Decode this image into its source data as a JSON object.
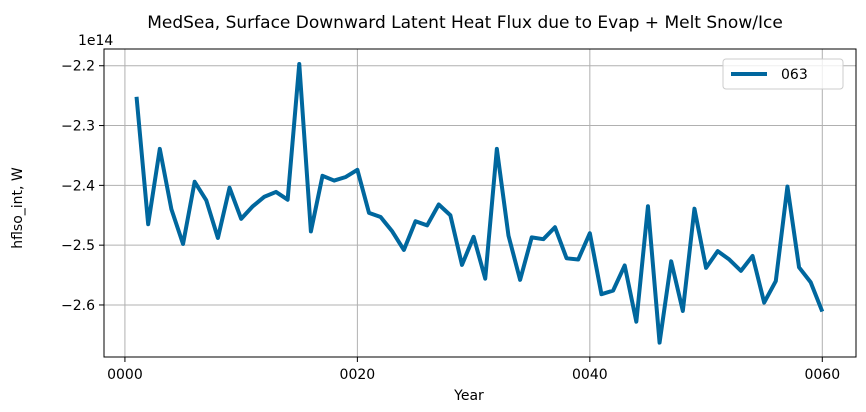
{
  "chart_data": {
    "type": "line",
    "title": "MedSea, Surface Downward Latent Heat Flux due to Evap + Melt Snow/Ice",
    "xlabel": "Year",
    "ylabel": "hflso_int, W",
    "y_offset_label": "1e14",
    "xlim": [
      -1.8,
      62.9
    ],
    "ylim": [
      -2.687,
      -2.172
    ],
    "grid": true,
    "legend_position": "top-right",
    "x_ticks": [
      {
        "value": 0,
        "label": "0000"
      },
      {
        "value": 20,
        "label": "0020"
      },
      {
        "value": 40,
        "label": "0040"
      },
      {
        "value": 60,
        "label": "0060"
      }
    ],
    "y_ticks": [
      {
        "value": -2.2,
        "label": "−2.2"
      },
      {
        "value": -2.3,
        "label": "−2.3"
      },
      {
        "value": -2.4,
        "label": "−2.4"
      },
      {
        "value": -2.5,
        "label": "−2.5"
      },
      {
        "value": -2.6,
        "label": "−2.6"
      }
    ],
    "series": [
      {
        "name": "063",
        "color": "#00679e",
        "x": [
          1,
          2,
          3,
          4,
          5,
          6,
          7,
          8,
          9,
          10,
          11,
          12,
          13,
          14,
          15,
          16,
          17,
          18,
          19,
          20,
          21,
          22,
          23,
          24,
          25,
          26,
          27,
          28,
          29,
          30,
          31,
          32,
          33,
          34,
          35,
          36,
          37,
          38,
          39,
          40,
          41,
          42,
          43,
          44,
          45,
          46,
          47,
          48,
          49,
          50,
          51,
          52,
          53,
          54,
          55,
          56,
          57,
          58,
          59,
          60
        ],
        "y": [
          -2.252,
          -2.465,
          -2.339,
          -2.44,
          -2.498,
          -2.394,
          -2.425,
          -2.488,
          -2.404,
          -2.456,
          -2.435,
          -2.419,
          -2.411,
          -2.424,
          -2.197,
          -2.477,
          -2.384,
          -2.392,
          -2.386,
          -2.374,
          -2.446,
          -2.453,
          -2.477,
          -2.508,
          -2.46,
          -2.467,
          -2.432,
          -2.45,
          -2.533,
          -2.486,
          -2.556,
          -2.339,
          -2.484,
          -2.558,
          -2.487,
          -2.49,
          -2.47,
          -2.522,
          -2.524,
          -2.48,
          -2.582,
          -2.576,
          -2.534,
          -2.628,
          -2.435,
          -2.663,
          -2.527,
          -2.61,
          -2.439,
          -2.538,
          -2.51,
          -2.524,
          -2.543,
          -2.518,
          -2.596,
          -2.56,
          -2.402,
          -2.537,
          -2.562,
          -2.611
        ]
      }
    ]
  }
}
